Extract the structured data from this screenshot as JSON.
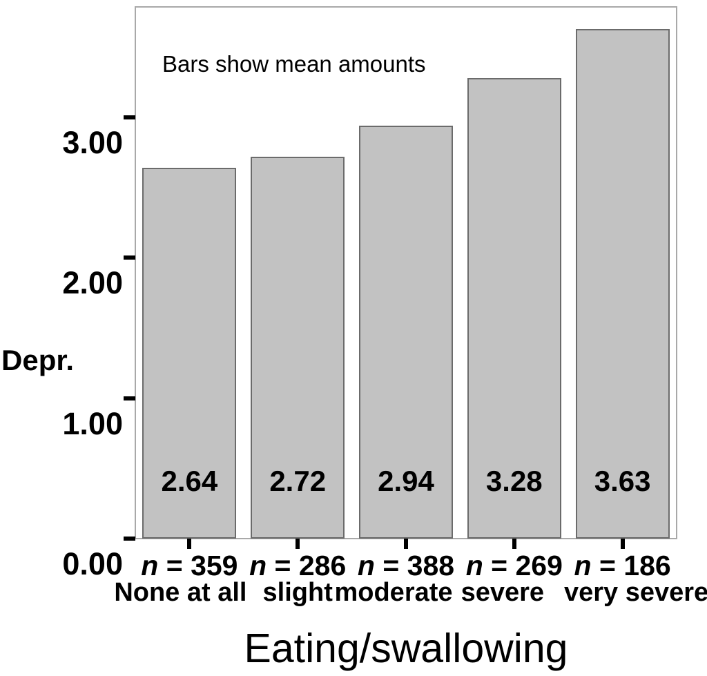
{
  "chart_data": {
    "type": "bar",
    "annotation": "Bars show mean amounts",
    "xlabel": "Eating/swallowing",
    "ylabel": "Depr.",
    "categories": [
      "None at all",
      "slight",
      "moderate",
      "severe",
      "very severe"
    ],
    "values": [
      2.64,
      2.72,
      2.94,
      3.28,
      3.63
    ],
    "bar_labels": [
      "2.64",
      "2.72",
      "2.94",
      "3.28",
      "3.63"
    ],
    "sample_sizes": [
      "359",
      "286",
      "388",
      "269",
      "186"
    ],
    "sample_size_prefix": "n",
    "sample_size_equals": " = ",
    "yticks": [
      {
        "value": 0,
        "label": "0.00"
      },
      {
        "value": 1,
        "label": "1.00"
      },
      {
        "value": 2,
        "label": "2.00"
      },
      {
        "value": 3,
        "label": "3.00"
      }
    ],
    "ylim": [
      0,
      3.785
    ],
    "grid": false,
    "legend_position": "none",
    "bar_fill_color": "#c2c2c2",
    "bar_border_color": "#6b6b6b",
    "frame_color": "#a9a9a9",
    "tick_color": "#000000",
    "text_color": "#000000"
  }
}
